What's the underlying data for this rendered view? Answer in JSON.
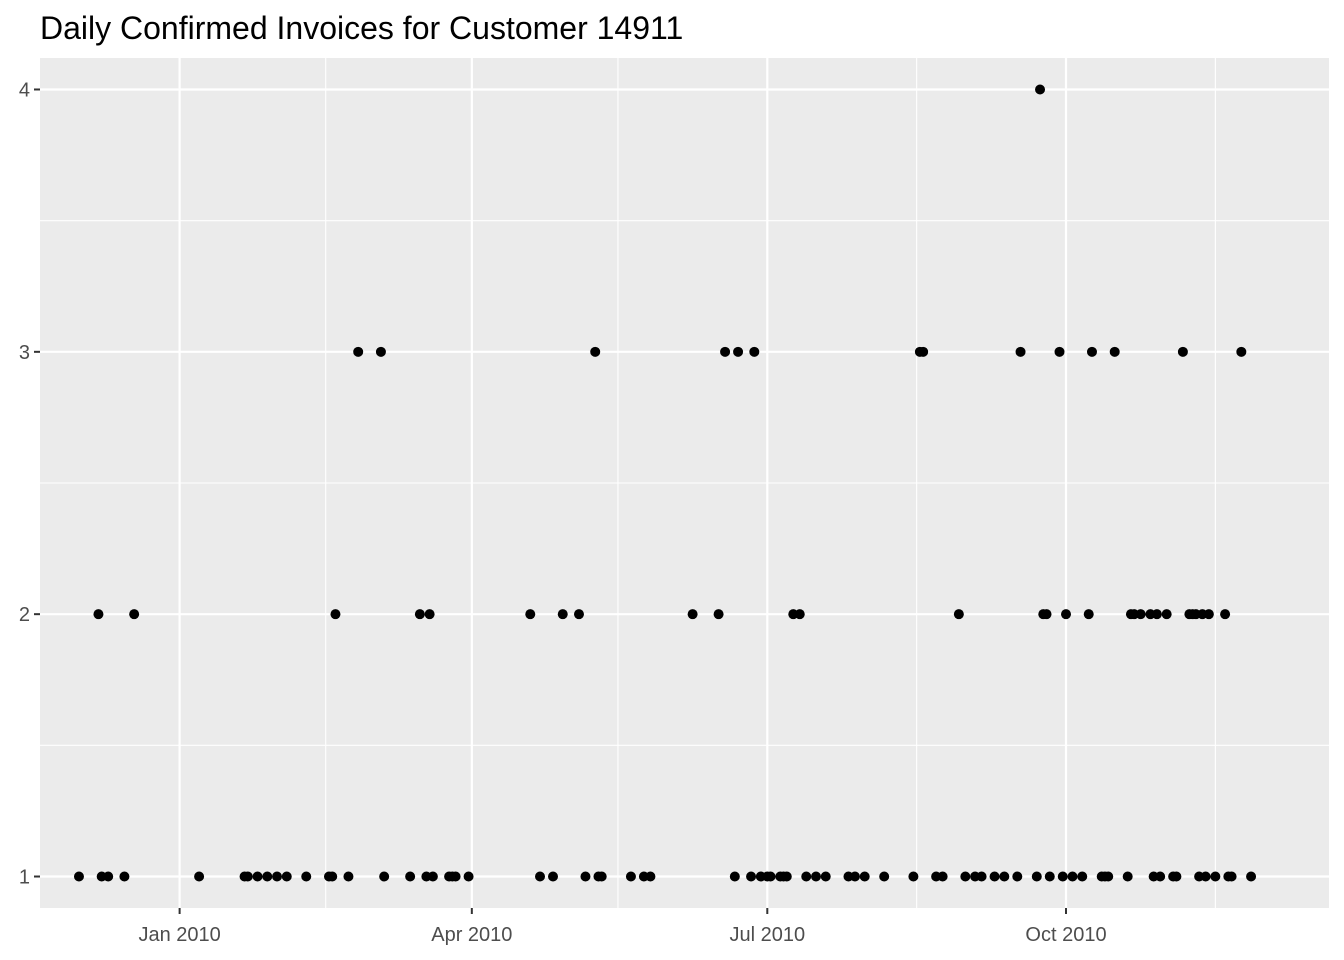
{
  "chart_data": {
    "type": "scatter",
    "title": "Daily Confirmed Invoices for Customer 14911",
    "xlabel": "",
    "ylabel": "",
    "x_scale": "date",
    "xlim": [
      "2009-11-19",
      "2010-12-21"
    ],
    "ylim": [
      0.88,
      4.12
    ],
    "x_ticks": [
      {
        "date": "2010-01-01",
        "label": "Jan 2010"
      },
      {
        "date": "2010-04-01",
        "label": "Apr 2010"
      },
      {
        "date": "2010-07-01",
        "label": "Jul 2010"
      },
      {
        "date": "2010-10-01",
        "label": "Oct 2010"
      }
    ],
    "x_minor_ticks": [
      "2009-11-16",
      "2010-02-15",
      "2010-05-16",
      "2010-08-16",
      "2010-11-16"
    ],
    "y_ticks": [
      1,
      2,
      3,
      4
    ],
    "y_tick_labels": [
      "1",
      "2",
      "3",
      "4"
    ],
    "grid": true,
    "legend": "none",
    "colors": {
      "panel": "#ebebeb",
      "grid": "#ffffff",
      "point": "#000000",
      "tick_text": "#4d4d4d",
      "tick_mark": "#333333"
    },
    "series": [
      {
        "points": [
          {
            "x": "2009-12-01",
            "y": 1
          },
          {
            "x": "2009-12-07",
            "y": 2
          },
          {
            "x": "2009-12-08",
            "y": 1
          },
          {
            "x": "2009-12-10",
            "y": 1
          },
          {
            "x": "2009-12-15",
            "y": 1
          },
          {
            "x": "2009-12-18",
            "y": 2
          },
          {
            "x": "2010-01-07",
            "y": 1
          },
          {
            "x": "2010-01-21",
            "y": 1
          },
          {
            "x": "2010-01-22",
            "y": 1
          },
          {
            "x": "2010-01-25",
            "y": 1
          },
          {
            "x": "2010-01-28",
            "y": 1
          },
          {
            "x": "2010-01-31",
            "y": 1
          },
          {
            "x": "2010-02-03",
            "y": 1
          },
          {
            "x": "2010-02-09",
            "y": 1
          },
          {
            "x": "2010-02-16",
            "y": 1
          },
          {
            "x": "2010-02-17",
            "y": 1
          },
          {
            "x": "2010-02-18",
            "y": 2
          },
          {
            "x": "2010-02-22",
            "y": 1
          },
          {
            "x": "2010-02-25",
            "y": 3
          },
          {
            "x": "2010-03-04",
            "y": 3
          },
          {
            "x": "2010-03-05",
            "y": 1
          },
          {
            "x": "2010-03-13",
            "y": 1
          },
          {
            "x": "2010-03-16",
            "y": 2
          },
          {
            "x": "2010-03-18",
            "y": 1
          },
          {
            "x": "2010-03-19",
            "y": 2
          },
          {
            "x": "2010-03-20",
            "y": 1
          },
          {
            "x": "2010-03-25",
            "y": 1
          },
          {
            "x": "2010-03-26",
            "y": 1
          },
          {
            "x": "2010-03-27",
            "y": 1
          },
          {
            "x": "2010-03-31",
            "y": 1
          },
          {
            "x": "2010-04-19",
            "y": 2
          },
          {
            "x": "2010-04-22",
            "y": 1
          },
          {
            "x": "2010-04-26",
            "y": 1
          },
          {
            "x": "2010-04-29",
            "y": 2
          },
          {
            "x": "2010-05-04",
            "y": 2
          },
          {
            "x": "2010-05-06",
            "y": 1
          },
          {
            "x": "2010-05-09",
            "y": 3
          },
          {
            "x": "2010-05-10",
            "y": 1
          },
          {
            "x": "2010-05-11",
            "y": 1
          },
          {
            "x": "2010-05-20",
            "y": 1
          },
          {
            "x": "2010-05-24",
            "y": 1
          },
          {
            "x": "2010-05-26",
            "y": 1
          },
          {
            "x": "2010-06-08",
            "y": 2
          },
          {
            "x": "2010-06-16",
            "y": 2
          },
          {
            "x": "2010-06-18",
            "y": 3
          },
          {
            "x": "2010-06-21",
            "y": 1
          },
          {
            "x": "2010-06-22",
            "y": 3
          },
          {
            "x": "2010-06-26",
            "y": 1
          },
          {
            "x": "2010-06-27",
            "y": 3
          },
          {
            "x": "2010-06-29",
            "y": 1
          },
          {
            "x": "2010-07-01",
            "y": 1
          },
          {
            "x": "2010-07-02",
            "y": 1
          },
          {
            "x": "2010-07-05",
            "y": 1
          },
          {
            "x": "2010-07-06",
            "y": 1
          },
          {
            "x": "2010-07-07",
            "y": 1
          },
          {
            "x": "2010-07-09",
            "y": 2
          },
          {
            "x": "2010-07-11",
            "y": 2
          },
          {
            "x": "2010-07-13",
            "y": 1
          },
          {
            "x": "2010-07-16",
            "y": 1
          },
          {
            "x": "2010-07-19",
            "y": 1
          },
          {
            "x": "2010-07-26",
            "y": 1
          },
          {
            "x": "2010-07-28",
            "y": 1
          },
          {
            "x": "2010-07-31",
            "y": 1
          },
          {
            "x": "2010-08-06",
            "y": 1
          },
          {
            "x": "2010-08-15",
            "y": 1
          },
          {
            "x": "2010-08-17",
            "y": 3
          },
          {
            "x": "2010-08-18",
            "y": 3
          },
          {
            "x": "2010-08-22",
            "y": 1
          },
          {
            "x": "2010-08-24",
            "y": 1
          },
          {
            "x": "2010-08-29",
            "y": 2
          },
          {
            "x": "2010-08-31",
            "y": 1
          },
          {
            "x": "2010-09-03",
            "y": 1
          },
          {
            "x": "2010-09-05",
            "y": 1
          },
          {
            "x": "2010-09-09",
            "y": 1
          },
          {
            "x": "2010-09-12",
            "y": 1
          },
          {
            "x": "2010-09-16",
            "y": 1
          },
          {
            "x": "2010-09-17",
            "y": 3
          },
          {
            "x": "2010-09-22",
            "y": 1
          },
          {
            "x": "2010-09-23",
            "y": 4
          },
          {
            "x": "2010-09-24",
            "y": 2
          },
          {
            "x": "2010-09-25",
            "y": 2
          },
          {
            "x": "2010-09-26",
            "y": 1
          },
          {
            "x": "2010-09-29",
            "y": 3
          },
          {
            "x": "2010-09-30",
            "y": 1
          },
          {
            "x": "2010-10-01",
            "y": 2
          },
          {
            "x": "2010-10-03",
            "y": 1
          },
          {
            "x": "2010-10-06",
            "y": 1
          },
          {
            "x": "2010-10-08",
            "y": 2
          },
          {
            "x": "2010-10-09",
            "y": 3
          },
          {
            "x": "2010-10-12",
            "y": 1
          },
          {
            "x": "2010-10-13",
            "y": 1
          },
          {
            "x": "2010-10-14",
            "y": 1
          },
          {
            "x": "2010-10-16",
            "y": 3
          },
          {
            "x": "2010-10-20",
            "y": 1
          },
          {
            "x": "2010-10-21",
            "y": 2
          },
          {
            "x": "2010-10-22",
            "y": 2
          },
          {
            "x": "2010-10-24",
            "y": 2
          },
          {
            "x": "2010-10-27",
            "y": 2
          },
          {
            "x": "2010-10-28",
            "y": 1
          },
          {
            "x": "2010-10-29",
            "y": 2
          },
          {
            "x": "2010-10-30",
            "y": 1
          },
          {
            "x": "2010-11-01",
            "y": 2
          },
          {
            "x": "2010-11-03",
            "y": 1
          },
          {
            "x": "2010-11-04",
            "y": 1
          },
          {
            "x": "2010-11-06",
            "y": 3
          },
          {
            "x": "2010-11-08",
            "y": 2
          },
          {
            "x": "2010-11-09",
            "y": 2
          },
          {
            "x": "2010-11-10",
            "y": 2
          },
          {
            "x": "2010-11-11",
            "y": 1
          },
          {
            "x": "2010-11-12",
            "y": 2
          },
          {
            "x": "2010-11-13",
            "y": 1
          },
          {
            "x": "2010-11-14",
            "y": 2
          },
          {
            "x": "2010-11-16",
            "y": 1
          },
          {
            "x": "2010-11-19",
            "y": 2
          },
          {
            "x": "2010-11-20",
            "y": 1
          },
          {
            "x": "2010-11-21",
            "y": 1
          },
          {
            "x": "2010-11-24",
            "y": 3
          },
          {
            "x": "2010-11-27",
            "y": 1
          }
        ]
      }
    ]
  }
}
